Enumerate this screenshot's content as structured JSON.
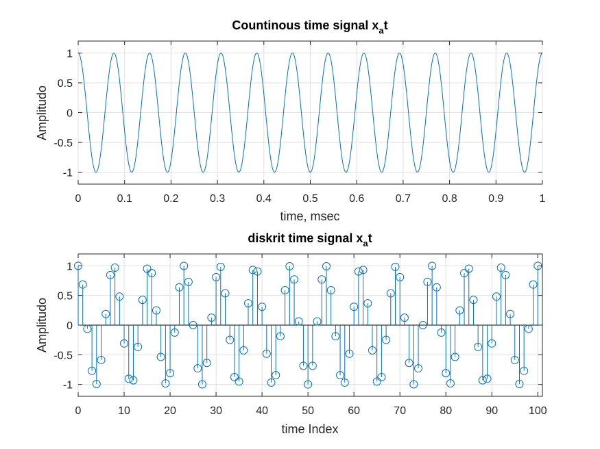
{
  "chart_data": [
    {
      "type": "line",
      "title_main": "Countinous time signal x",
      "title_sub": "a",
      "title_tail": "t",
      "xlabel": "time, msec",
      "ylabel": "Amplitudo",
      "xlim": [
        0,
        1
      ],
      "ylim": [
        -1.2,
        1.2
      ],
      "xticks": [
        "0",
        "0.1",
        "0.2",
        "0.3",
        "0.4",
        "0.5",
        "0.6",
        "0.7",
        "0.8",
        "0.9",
        "1"
      ],
      "yticks": [
        "-1",
        "-0.5",
        "0",
        "0.5",
        "1"
      ],
      "grid": true,
      "color": "#0072bd",
      "series": [
        {
          "function": "cos(2*pi*f*t)",
          "frequency_kHz": 13,
          "t_range": [
            0,
            1
          ]
        }
      ]
    },
    {
      "type": "stem",
      "title_main": "diskrit time signal x",
      "title_sub": "a",
      "title_tail": "t",
      "xlabel": "time Index",
      "ylabel": "Amplitudo",
      "xlim": [
        0,
        101
      ],
      "ylim": [
        -1.2,
        1.2
      ],
      "xticks": [
        "0",
        "10",
        "20",
        "30",
        "40",
        "50",
        "60",
        "70",
        "80",
        "90",
        "100"
      ],
      "yticks": [
        "-1",
        "-0.5",
        "0",
        "0.5",
        "1"
      ],
      "grid": true,
      "color": "#0072bd",
      "series": [
        {
          "function": "cos(2*pi*f*n*Ts)",
          "n_range": [
            0,
            100
          ],
          "frequency_kHz": 13,
          "sample_interval_msec": 0.01
        }
      ]
    }
  ]
}
